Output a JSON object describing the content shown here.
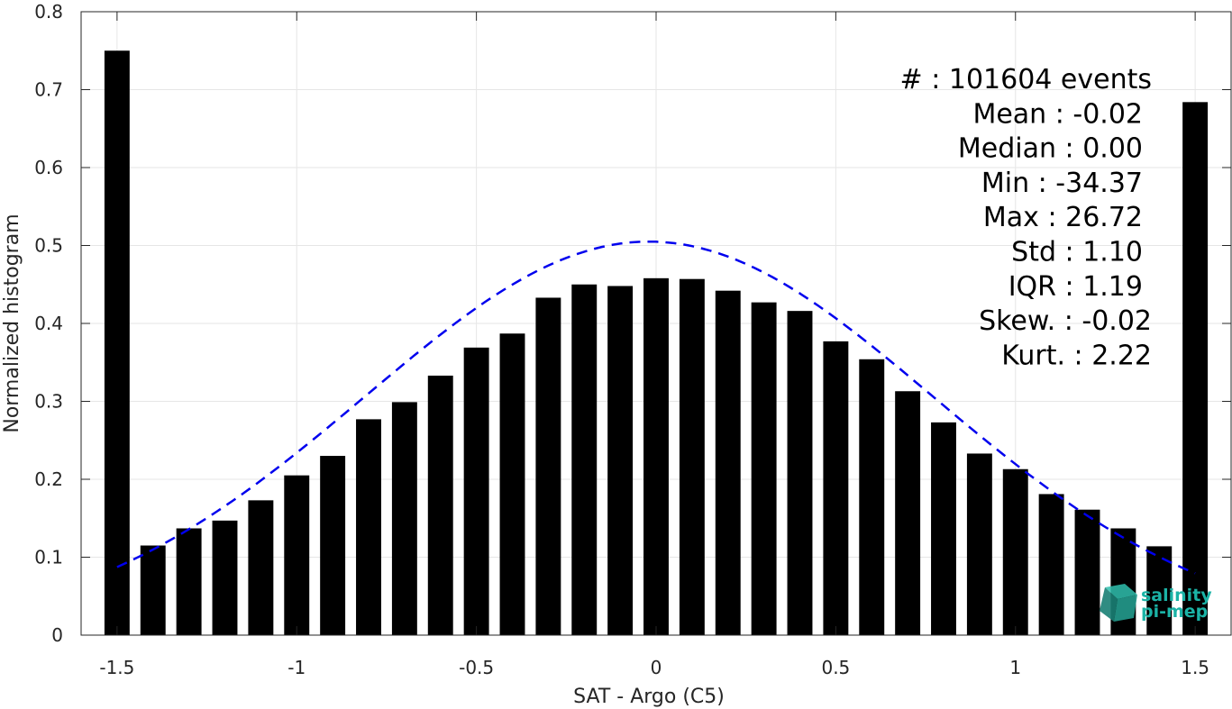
{
  "chart_data": {
    "type": "bar",
    "xlabel": "SAT - Argo (C5)",
    "ylabel": "Normalized histogram",
    "xlim": [
      -1.6,
      1.6
    ],
    "ylim": [
      0,
      0.8
    ],
    "xticks": [
      -1.5,
      -1,
      -0.5,
      0,
      0.5,
      1,
      1.5
    ],
    "xtick_labels": [
      "-1.5",
      "-1",
      "-0.5",
      "0",
      "0.5",
      "1",
      "1.5"
    ],
    "yticks": [
      0,
      0.1,
      0.2,
      0.3,
      0.4,
      0.5,
      0.6,
      0.7,
      0.8
    ],
    "ytick_labels": [
      "0",
      "0.1",
      "0.2",
      "0.3",
      "0.4",
      "0.5",
      "0.6",
      "0.7",
      "0.8"
    ],
    "grid": true,
    "bar_width": 0.07,
    "bar_color": "#000000",
    "bars": [
      {
        "x": -1.5,
        "y": 0.75
      },
      {
        "x": -1.4,
        "y": 0.115
      },
      {
        "x": -1.3,
        "y": 0.137
      },
      {
        "x": -1.2,
        "y": 0.147
      },
      {
        "x": -1.1,
        "y": 0.173
      },
      {
        "x": -1.0,
        "y": 0.205
      },
      {
        "x": -0.9,
        "y": 0.23
      },
      {
        "x": -0.8,
        "y": 0.277
      },
      {
        "x": -0.7,
        "y": 0.299
      },
      {
        "x": -0.6,
        "y": 0.333
      },
      {
        "x": -0.5,
        "y": 0.369
      },
      {
        "x": -0.4,
        "y": 0.387
      },
      {
        "x": -0.3,
        "y": 0.433
      },
      {
        "x": -0.2,
        "y": 0.45
      },
      {
        "x": -0.1,
        "y": 0.448
      },
      {
        "x": 0.0,
        "y": 0.458
      },
      {
        "x": 0.1,
        "y": 0.457
      },
      {
        "x": 0.2,
        "y": 0.442
      },
      {
        "x": 0.3,
        "y": 0.427
      },
      {
        "x": 0.4,
        "y": 0.416
      },
      {
        "x": 0.5,
        "y": 0.377
      },
      {
        "x": 0.6,
        "y": 0.354
      },
      {
        "x": 0.7,
        "y": 0.313
      },
      {
        "x": 0.8,
        "y": 0.273
      },
      {
        "x": 0.9,
        "y": 0.233
      },
      {
        "x": 1.0,
        "y": 0.213
      },
      {
        "x": 1.1,
        "y": 0.181
      },
      {
        "x": 1.2,
        "y": 0.161
      },
      {
        "x": 1.3,
        "y": 0.137
      },
      {
        "x": 1.4,
        "y": 0.114
      },
      {
        "x": 1.5,
        "y": 0.684
      }
    ],
    "fit_curve": {
      "style": "dashed",
      "color": "#0000ee",
      "x_range": [
        -1.5,
        1.5
      ],
      "mean": -0.02,
      "std": 0.79,
      "peak": 0.505
    },
    "stats_lines": [
      "#  : 101604 events",
      "Mean : -0.02",
      "Median : 0.00",
      "Min : -34.37",
      "Max : 26.72",
      "Std : 1.10",
      "IQR : 1.19",
      "Skew. : -0.02",
      "Kurt. : 2.22"
    ]
  },
  "logo": {
    "line1": "salinity",
    "line2": "pi-mep",
    "color": "#1bb3a6"
  }
}
